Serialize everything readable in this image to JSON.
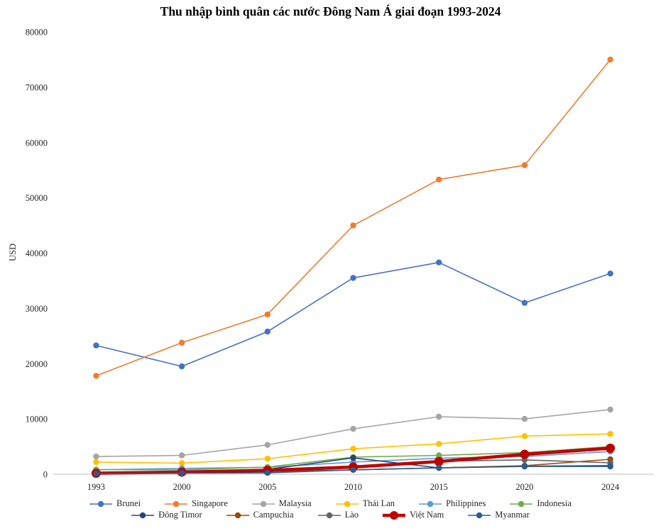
{
  "title": "Thu nhập bình quân các nước Đông Nam Á giai đoạn 1993-2024",
  "chart_data": {
    "type": "line",
    "categories": [
      "1993",
      "2000",
      "2005",
      "2010",
      "2015",
      "2020",
      "2024"
    ],
    "title": "Thu nhập bình quân các nước Đông Nam Á giai đoạn 1993-2024",
    "xlabel": "",
    "ylabel": "USD",
    "ylim": [
      0,
      80000
    ],
    "y_ticks": [
      0,
      10000,
      20000,
      30000,
      40000,
      50000,
      60000,
      70000,
      80000
    ],
    "grid": false,
    "legend_position": "bottom",
    "legend_rows": [
      6,
      5
    ],
    "axis_color": "#BFBFBF",
    "series": [
      {
        "name": "Brunei",
        "color": "#4472C4",
        "emphasis": false,
        "values": [
          23300,
          19500,
          25800,
          35500,
          38300,
          31000,
          36300
        ]
      },
      {
        "name": "Singapore",
        "color": "#ED7D31",
        "emphasis": false,
        "values": [
          17800,
          23800,
          28900,
          45000,
          53300,
          55900,
          75000
        ]
      },
      {
        "name": "Malaysia",
        "color": "#A5A5A5",
        "emphasis": false,
        "values": [
          3200,
          3400,
          5300,
          8200,
          10400,
          10000,
          11700
        ]
      },
      {
        "name": "Thái Lan",
        "color": "#FFC000",
        "emphasis": false,
        "values": [
          2200,
          2000,
          2800,
          4600,
          5500,
          6900,
          7300
        ]
      },
      {
        "name": "Philippines",
        "color": "#5B9BD5",
        "emphasis": false,
        "values": [
          800,
          1050,
          1250,
          2200,
          2900,
          3200,
          4100
        ]
      },
      {
        "name": "Indonesia",
        "color": "#70AD47",
        "emphasis": false,
        "values": [
          830,
          780,
          1300,
          3100,
          3400,
          3900,
          5000
        ]
      },
      {
        "name": "Đông Timor",
        "color": "#264478",
        "emphasis": false,
        "values": [
          350,
          420,
          870,
          2950,
          1150,
          1450,
          1550
        ]
      },
      {
        "name": "Campuchia",
        "color": "#9E480E",
        "emphasis": false,
        "values": [
          250,
          300,
          470,
          780,
          1160,
          1540,
          2700
        ]
      },
      {
        "name": "Lào",
        "color": "#636363",
        "emphasis": false,
        "values": [
          360,
          330,
          470,
          1140,
          2350,
          2590,
          2050
        ]
      },
      {
        "name": "Việt Nam",
        "color": "#C00000",
        "emphasis": true,
        "values": [
          185,
          390,
          700,
          1300,
          2300,
          3600,
          4700
        ]
      },
      {
        "name": "Myanmar",
        "color": "#255E91",
        "emphasis": false,
        "values": [
          120,
          190,
          250,
          800,
          1140,
          1400,
          1400
        ]
      }
    ]
  }
}
